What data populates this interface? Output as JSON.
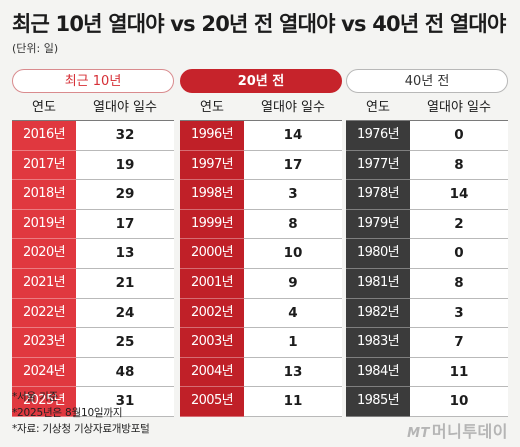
{
  "title": "최근 10년 열대야 vs 20년 전 열대야 vs 40년 전 열대야",
  "unit": "(단위: 일)",
  "column_headers": {
    "year": "연도",
    "days": "열대야 일수"
  },
  "notes": [
    "*서울 기준",
    "*2025년은 8월10일까지",
    "*자료: 기상청 기상자료개방포털"
  ],
  "logo": {
    "mt": "MT",
    "name": "머니투데이"
  },
  "colors": {
    "recent": "#e0383f",
    "twenty": "#c02028",
    "forty": "#3b3b3b"
  },
  "chart_data": {
    "type": "table",
    "tables": [
      {
        "label": "최근 10년",
        "years": [
          "2016년",
          "2017년",
          "2018년",
          "2019년",
          "2020년",
          "2021년",
          "2022년",
          "2023년",
          "2024년",
          "2025년"
        ],
        "values": [
          32,
          19,
          29,
          17,
          13,
          21,
          24,
          25,
          48,
          31
        ]
      },
      {
        "label": "20년 전",
        "years": [
          "1996년",
          "1997년",
          "1998년",
          "1999년",
          "2000년",
          "2001년",
          "2002년",
          "2003년",
          "2004년",
          "2005년"
        ],
        "values": [
          14,
          17,
          3,
          8,
          10,
          9,
          4,
          1,
          13,
          11
        ]
      },
      {
        "label": "40년 전",
        "years": [
          "1976년",
          "1977년",
          "1978년",
          "1979년",
          "1980년",
          "1981년",
          "1982년",
          "1983년",
          "1984년",
          "1985년"
        ],
        "values": [
          0,
          8,
          14,
          2,
          0,
          8,
          3,
          7,
          11,
          10
        ]
      }
    ]
  }
}
